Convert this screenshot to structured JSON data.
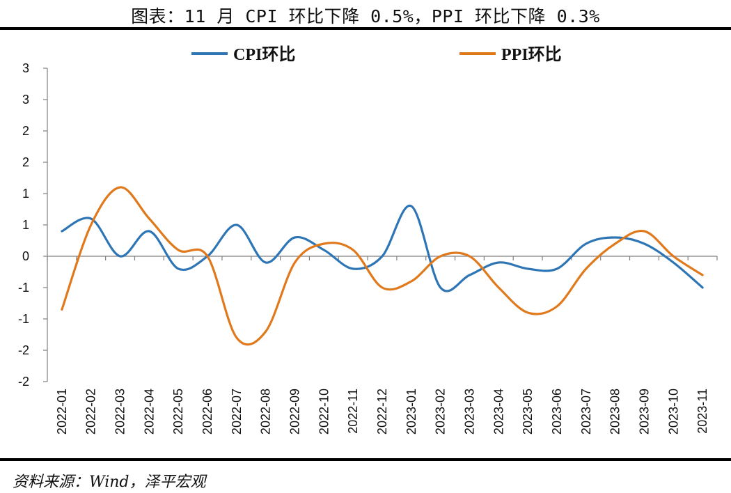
{
  "title": "图表：11 月 CPI 环比下降 0.5%，PPI 环比下降 0.3%",
  "source": "资料来源：Wind，泽平宏观",
  "chart_data": {
    "type": "line",
    "categories": [
      "2022-01",
      "2022-02",
      "2022-03",
      "2022-04",
      "2022-05",
      "2022-06",
      "2022-07",
      "2022-08",
      "2022-09",
      "2022-10",
      "2022-11",
      "2022-12",
      "2023-01",
      "2023-02",
      "2023-03",
      "2023-04",
      "2023-05",
      "2023-06",
      "2023-07",
      "2023-08",
      "2023-09",
      "2023-10",
      "2023-11"
    ],
    "y_tick_labels": [
      "3",
      "3",
      "2",
      "2",
      "1",
      "1",
      "0",
      "-1",
      "-1",
      "-2",
      "-2"
    ],
    "ylim": [
      -2,
      3
    ],
    "series": [
      {
        "name": "CPI环比",
        "color": "#2e75b6",
        "values": [
          0.4,
          0.6,
          0.0,
          0.4,
          -0.2,
          0.0,
          0.5,
          -0.1,
          0.3,
          0.1,
          -0.2,
          0.0,
          0.8,
          -0.5,
          -0.3,
          -0.1,
          -0.2,
          -0.2,
          0.2,
          0.3,
          0.2,
          -0.1,
          -0.5
        ]
      },
      {
        "name": "PPI环比",
        "color": "#e0791c",
        "values": [
          -0.85,
          0.5,
          1.1,
          0.6,
          0.1,
          0.0,
          -1.3,
          -1.2,
          -0.1,
          0.2,
          0.1,
          -0.5,
          -0.4,
          0.0,
          0.0,
          -0.5,
          -0.9,
          -0.8,
          -0.2,
          0.2,
          0.4,
          0.0,
          -0.3
        ]
      }
    ],
    "legend": "top",
    "grid": false
  }
}
